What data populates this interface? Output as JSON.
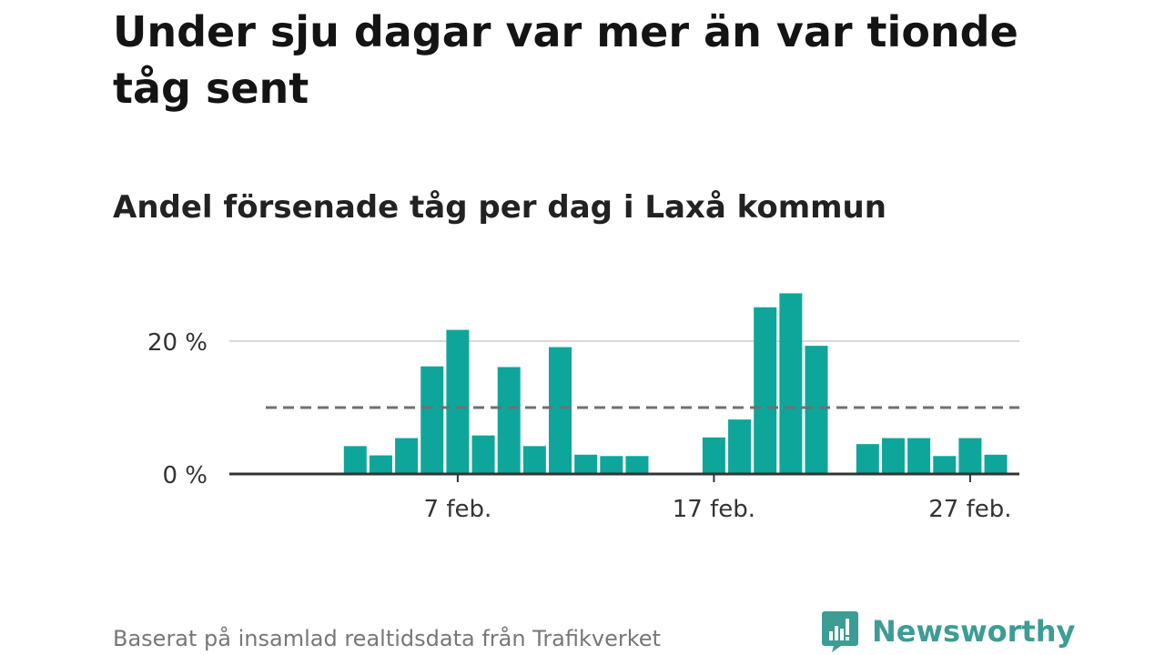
{
  "header": {
    "title": "Under sju dagar var mer än var tionde tåg sent",
    "subtitle": "Andel försenade tåg per dag i Laxå kommun"
  },
  "footer": {
    "source": "Baserat på insamlad realtidsdata från Trafikverket",
    "brand": "Newsworthy"
  },
  "colors": {
    "bar": "#0ea69b",
    "grid": "#d9d9d9",
    "axis": "#333333",
    "reference": "#707070",
    "brand": "#3b9d94"
  },
  "chart_data": {
    "type": "bar",
    "x_unit": "day of February",
    "x": [
      1,
      2,
      3,
      4,
      5,
      6,
      7,
      8,
      9,
      10,
      11,
      12,
      13,
      14,
      15,
      16,
      17,
      18,
      19,
      20,
      21,
      22,
      23,
      24,
      25,
      26,
      27,
      28
    ],
    "values": [
      null,
      null,
      4.2,
      2.8,
      5.4,
      16.2,
      21.7,
      5.8,
      16.1,
      4.2,
      19.1,
      2.9,
      2.7,
      2.7,
      null,
      null,
      5.5,
      8.2,
      25.1,
      27.2,
      19.3,
      null,
      4.5,
      5.4,
      5.4,
      2.7,
      5.4,
      2.9
    ],
    "x_ticks": [
      {
        "x": 7,
        "label": "7 feb."
      },
      {
        "x": 17,
        "label": "17 feb."
      },
      {
        "x": 27,
        "label": "27 feb."
      }
    ],
    "y_ticks": [
      {
        "value": 0,
        "label": "0 %"
      },
      {
        "value": 20,
        "label": "20 %"
      }
    ],
    "ylim": [
      0,
      30
    ],
    "reference_line": 10,
    "grid": true
  }
}
